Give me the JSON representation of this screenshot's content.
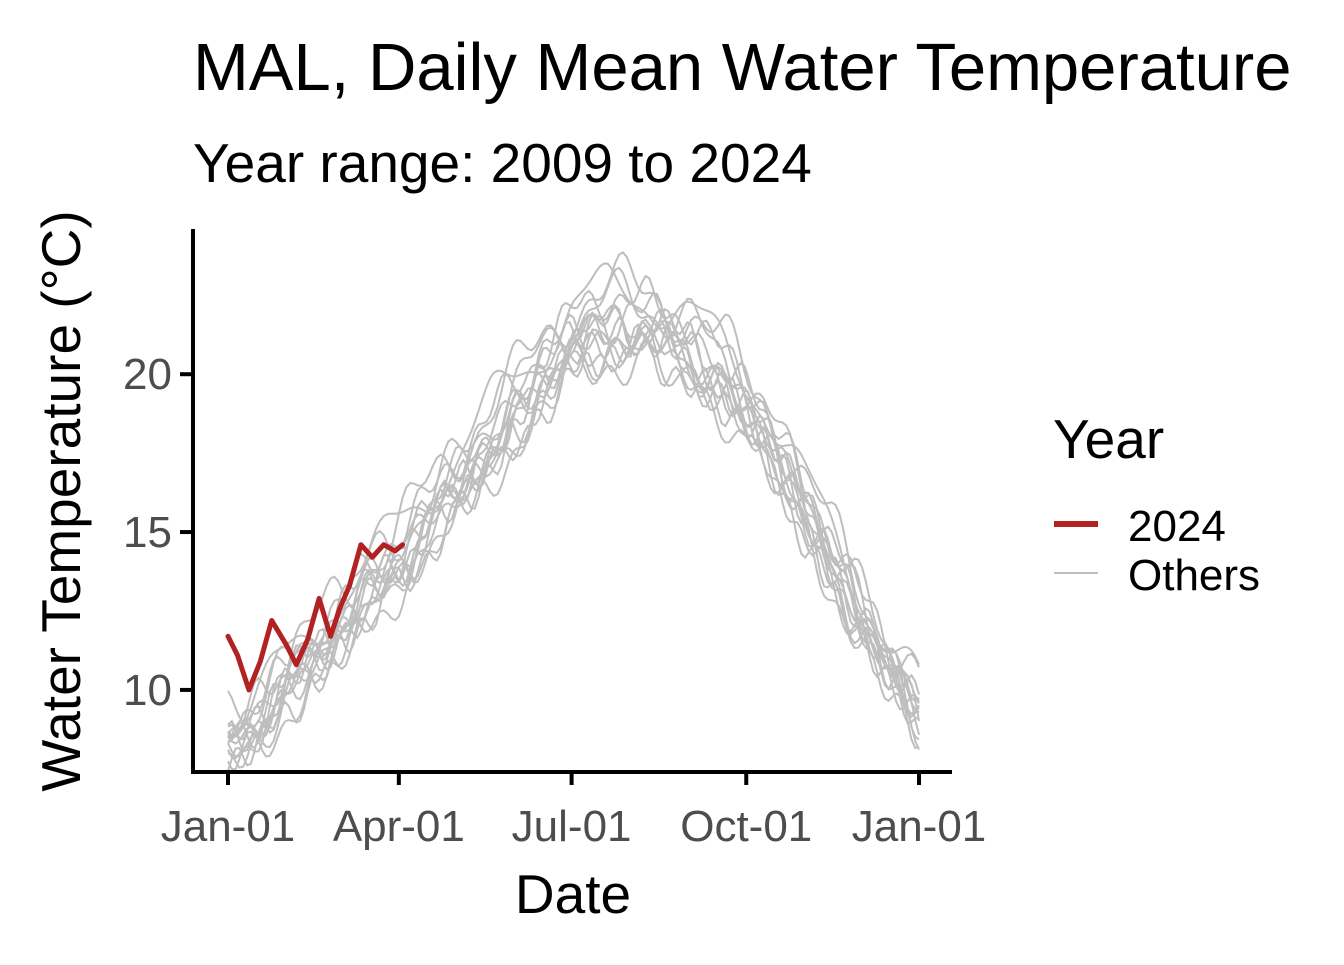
{
  "chart_data": {
    "type": "line",
    "title": "MAL, Daily Mean Water Temperature",
    "subtitle": "Year range: 2009 to 2024",
    "xlabel": "Date",
    "ylabel": "Water Temperature (°C)",
    "x_ticks": [
      "Jan-01",
      "Apr-01",
      "Jul-01",
      "Oct-01",
      "Jan-01"
    ],
    "y_ticks": [
      10,
      15,
      20
    ],
    "ylim": [
      7.4,
      24.6
    ],
    "legend": {
      "title": "Year",
      "position": "right",
      "entries": [
        {
          "label": "2024",
          "color": "#b22222"
        },
        {
          "label": "Others",
          "color": "#bebebe"
        }
      ]
    },
    "grid": false,
    "series": [
      {
        "name": "2024",
        "color": "#b22222",
        "x": [
          "Jan-01",
          "Jan-06",
          "Jan-12",
          "Jan-18",
          "Jan-24",
          "Feb-01",
          "Feb-06",
          "Feb-12",
          "Feb-18",
          "Feb-24",
          "Mar-01",
          "Mar-06",
          "Mar-12",
          "Mar-18",
          "Mar-24",
          "Mar-30",
          "Apr-03"
        ],
        "y": [
          11.7,
          11.1,
          10.0,
          10.9,
          12.2,
          11.4,
          10.8,
          11.6,
          12.9,
          11.7,
          12.6,
          13.3,
          14.6,
          14.2,
          14.6,
          14.4,
          14.6
        ]
      },
      {
        "name": "Others",
        "color": "#bebebe",
        "x": [
          "Jan-01",
          "Jan-20",
          "Feb-10",
          "Mar-01",
          "Mar-20",
          "Apr-10",
          "May-01",
          "May-20",
          "Jun-10",
          "Jul-01",
          "Jul-20",
          "Aug-10",
          "Sep-01",
          "Sep-20",
          "Oct-10",
          "Nov-01",
          "Nov-20",
          "Dec-10",
          "Dec-31"
        ],
        "y": [
          8.5,
          9.5,
          10.8,
          12.3,
          13.6,
          15.0,
          16.6,
          18.2,
          19.6,
          21.3,
          21.8,
          21.7,
          21.0,
          20.0,
          18.5,
          15.8,
          13.8,
          11.4,
          9.5
        ]
      }
    ]
  }
}
